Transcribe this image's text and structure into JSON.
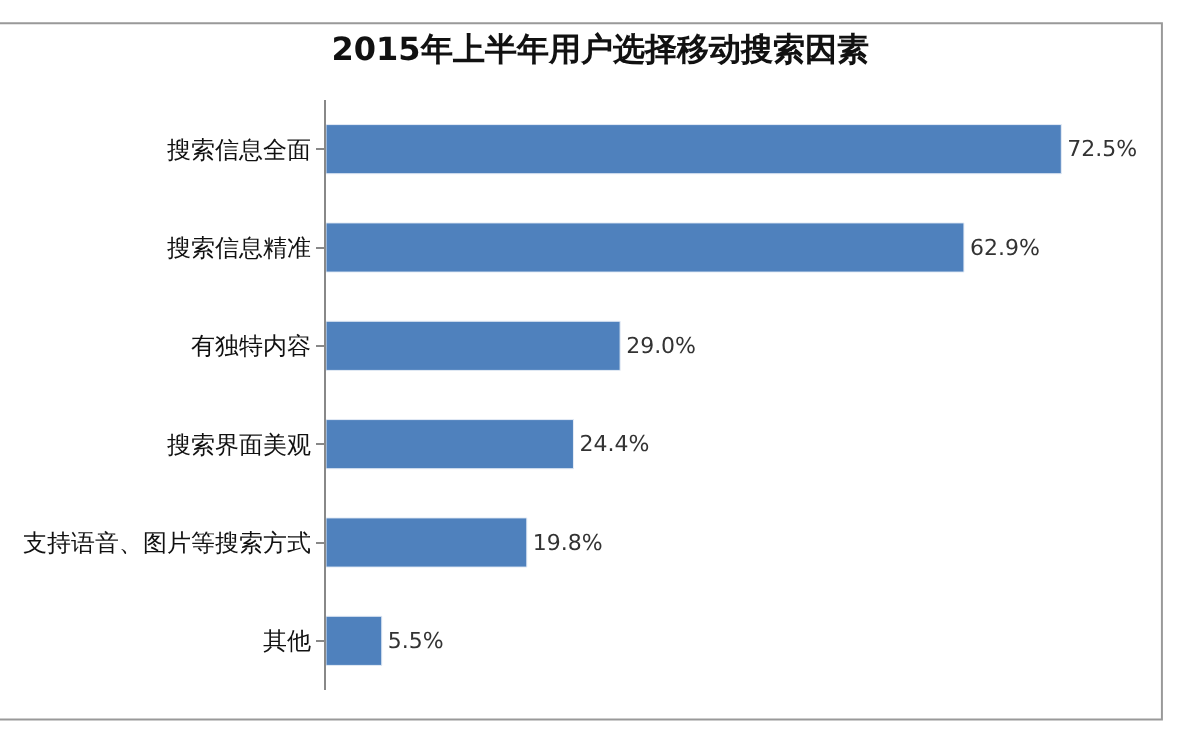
{
  "chart_data": {
    "type": "bar",
    "orientation": "horizontal",
    "title": "2015年上半年用户选择移动搜索因素",
    "categories": [
      "搜索信息全面",
      "搜索信息精准",
      "有独特内容",
      "搜索界面美观",
      "支持语音、图片等搜索方式",
      "其他"
    ],
    "values": [
      72.5,
      62.9,
      29.0,
      24.4,
      19.8,
      5.5
    ],
    "value_labels": [
      "72.5%",
      "62.9%",
      "29.0%",
      "24.4%",
      "19.8%",
      "5.5%"
    ],
    "color": "#4f81bd"
  }
}
